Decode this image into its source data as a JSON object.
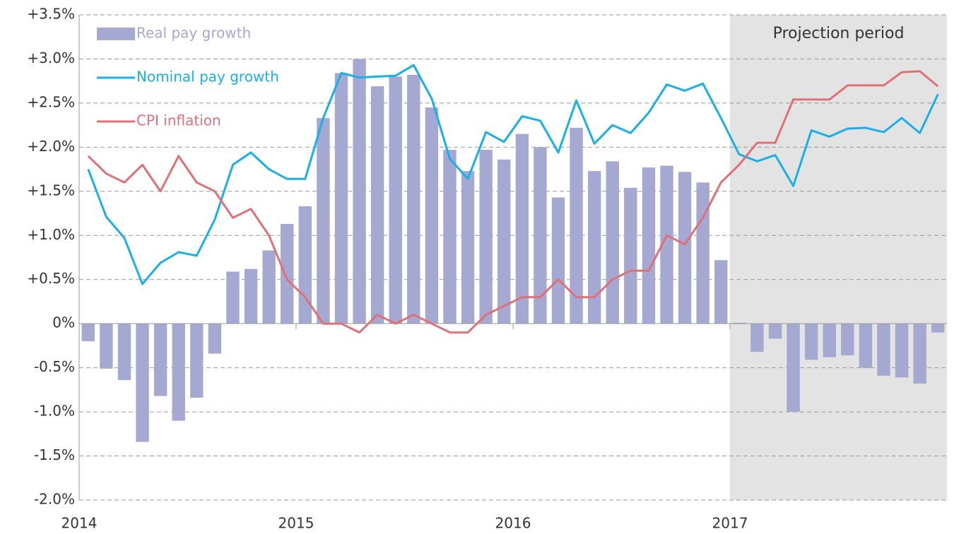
{
  "chart_data": {
    "type": "bar_line",
    "categories": [
      "2014",
      null,
      null,
      null,
      null,
      null,
      null,
      null,
      null,
      null,
      null,
      null,
      "2015",
      null,
      null,
      null,
      null,
      null,
      null,
      null,
      null,
      null,
      null,
      null,
      "2016",
      null,
      null,
      null,
      null,
      null,
      null,
      null,
      null,
      null,
      null,
      null,
      "2017",
      null,
      null,
      null,
      null,
      null,
      null,
      null,
      null,
      null,
      null,
      null
    ],
    "annotation": {
      "text": "Projection period",
      "from": "2017",
      "color": "#e3e3e3"
    },
    "series": [
      {
        "name": "Real pay growth",
        "type": "bar",
        "color": "#a5a8d1",
        "values": [
          -0.2,
          -0.51,
          -0.64,
          -1.34,
          -0.82,
          -1.1,
          -0.84,
          -0.34,
          0.59,
          0.62,
          0.83,
          1.13,
          1.33,
          2.33,
          2.84,
          3.0,
          2.69,
          2.8,
          2.82,
          2.45,
          1.97,
          1.73,
          1.97,
          1.86,
          2.15,
          2.0,
          1.43,
          2.22,
          1.73,
          1.84,
          1.54,
          1.77,
          1.79,
          1.72,
          1.6,
          0.72,
          0.01,
          -0.32,
          -0.17,
          -1.0,
          -0.41,
          -0.38,
          -0.36,
          -0.5,
          -0.59,
          -0.61,
          -0.68,
          -0.1
        ]
      },
      {
        "name": "Nominal pay growth",
        "type": "line",
        "color": "#1aafe6",
        "values": [
          1.75,
          1.21,
          0.97,
          0.45,
          0.69,
          0.81,
          0.77,
          1.18,
          1.8,
          1.94,
          1.75,
          1.64,
          1.64,
          2.33,
          2.84,
          2.79,
          2.8,
          2.81,
          2.93,
          2.55,
          1.87,
          1.64,
          2.17,
          2.06,
          2.35,
          2.3,
          1.94,
          2.53,
          2.04,
          2.25,
          2.16,
          2.39,
          2.71,
          2.64,
          2.72,
          2.33,
          1.92,
          1.84,
          1.91,
          1.56,
          2.19,
          2.12,
          2.21,
          2.22,
          2.17,
          2.33,
          2.16,
          2.6
        ]
      },
      {
        "name": "CPI inflation",
        "type": "line",
        "color": "#e07078",
        "values": [
          1.9,
          1.7,
          1.6,
          1.8,
          1.5,
          1.9,
          1.6,
          1.5,
          1.2,
          1.3,
          1.0,
          0.5,
          0.3,
          0.0,
          0.0,
          -0.1,
          0.1,
          0.0,
          0.1,
          0.0,
          -0.1,
          -0.1,
          0.1,
          0.2,
          0.3,
          0.3,
          0.5,
          0.3,
          0.3,
          0.5,
          0.6,
          0.6,
          1.0,
          0.9,
          1.2,
          1.6,
          1.8,
          2.05,
          2.05,
          2.54,
          2.54,
          2.54,
          2.7,
          2.7,
          2.7,
          2.85,
          2.86,
          2.69
        ]
      }
    ],
    "ylim": [
      -2.0,
      3.5
    ],
    "yticks": [
      {
        "value": -2.0,
        "label": "-2.0%"
      },
      {
        "value": -1.5,
        "label": "-1.5%"
      },
      {
        "value": -1.0,
        "label": "-1.0%"
      },
      {
        "value": -0.5,
        "label": "-0.5%"
      },
      {
        "value": 0,
        "label": "0%"
      },
      {
        "value": 0.5,
        "label": "+0.5%"
      },
      {
        "value": 1.0,
        "label": "+1.0%"
      },
      {
        "value": 1.5,
        "label": "+1.5%"
      },
      {
        "value": 2.0,
        "label": "+2.0%"
      },
      {
        "value": 2.5,
        "label": "+2.5%"
      },
      {
        "value": 3.0,
        "label": "+3.0%"
      },
      {
        "value": 3.5,
        "label": "+3.5%"
      }
    ],
    "grid": true,
    "legend": "top-left"
  }
}
